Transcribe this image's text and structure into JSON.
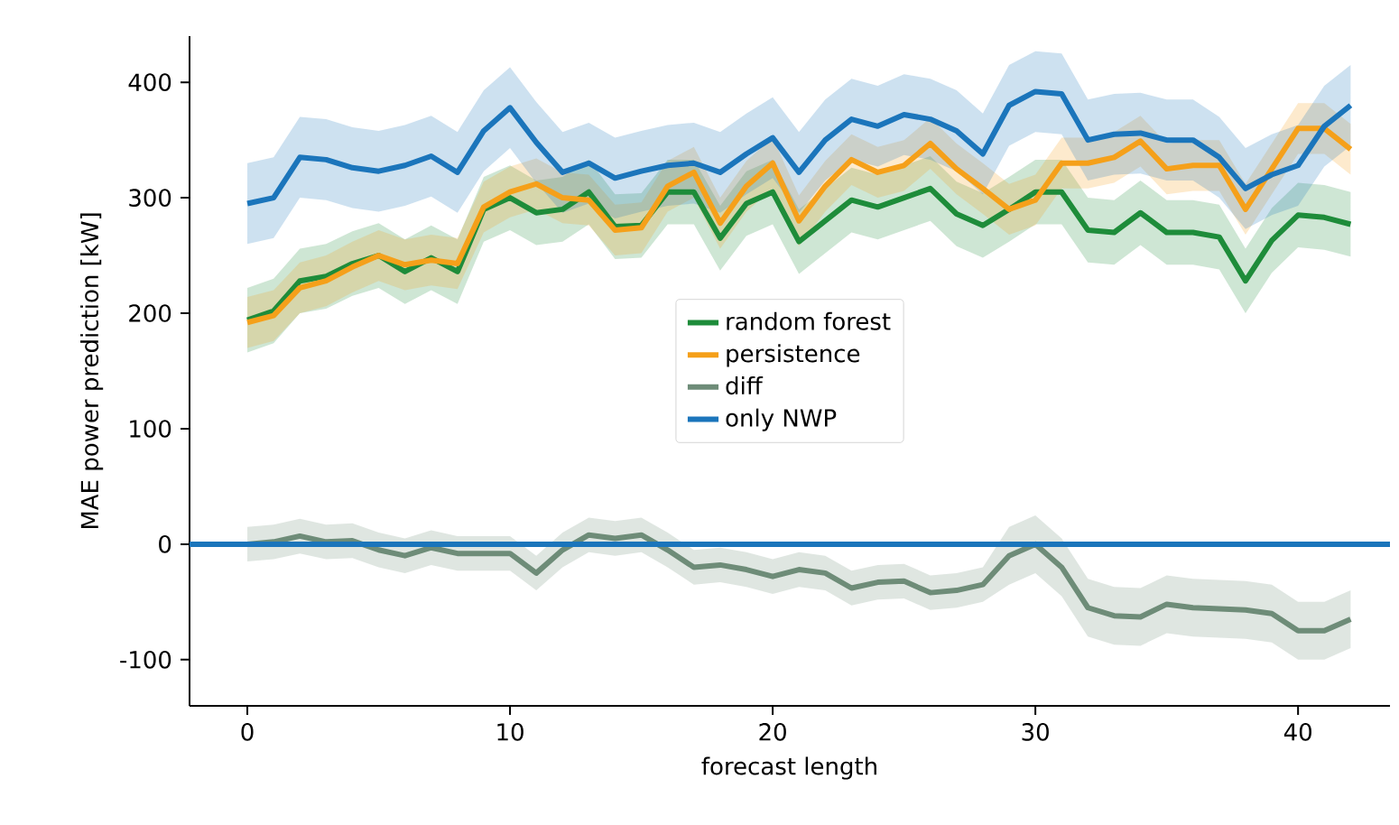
{
  "chart_data": {
    "type": "line",
    "xlabel": "forecast length",
    "ylabel": "MAE power prediction [kW]",
    "x": [
      0,
      1,
      2,
      3,
      4,
      5,
      6,
      7,
      8,
      9,
      10,
      11,
      12,
      13,
      14,
      15,
      16,
      17,
      18,
      19,
      20,
      21,
      22,
      23,
      24,
      25,
      26,
      27,
      28,
      29,
      30,
      31,
      32,
      33,
      34,
      35,
      36,
      37,
      38,
      39,
      40,
      41,
      42
    ],
    "xlim": [
      -2.2,
      43.5
    ],
    "ylim": [
      -140,
      440
    ],
    "xticks": [
      0,
      10,
      20,
      30,
      40
    ],
    "yticks": [
      -100,
      0,
      100,
      200,
      300,
      400
    ],
    "legend": "center",
    "grid": false,
    "series": [
      {
        "name": "random forest",
        "color": "#1e8c3a",
        "values": [
          194,
          202,
          228,
          232,
          243,
          250,
          236,
          248,
          236,
          290,
          300,
          287,
          290,
          305,
          275,
          276,
          305,
          305,
          265,
          295,
          305,
          262,
          280,
          298,
          292,
          300,
          308,
          286,
          276,
          290,
          305,
          305,
          272,
          270,
          287,
          270,
          270,
          266,
          228,
          263,
          285,
          283,
          277
        ],
        "lower": [
          166,
          174,
          200,
          204,
          215,
          222,
          208,
          220,
          208,
          262,
          272,
          259,
          262,
          277,
          247,
          248,
          277,
          277,
          237,
          267,
          277,
          234,
          252,
          270,
          264,
          272,
          280,
          258,
          248,
          262,
          277,
          277,
          244,
          242,
          259,
          242,
          242,
          238,
          200,
          235,
          257,
          255,
          249
        ],
        "upper": [
          222,
          230,
          256,
          260,
          271,
          278,
          264,
          276,
          264,
          318,
          328,
          315,
          318,
          333,
          303,
          304,
          333,
          333,
          293,
          323,
          333,
          290,
          308,
          326,
          320,
          328,
          336,
          314,
          304,
          318,
          333,
          333,
          300,
          298,
          315,
          298,
          298,
          294,
          256,
          291,
          313,
          311,
          305
        ]
      },
      {
        "name": "persistence",
        "color": "#f5a01a",
        "values": [
          192,
          198,
          222,
          228,
          240,
          250,
          242,
          246,
          243,
          292,
          305,
          312,
          300,
          298,
          272,
          274,
          310,
          322,
          278,
          310,
          330,
          280,
          310,
          333,
          322,
          328,
          347,
          325,
          308,
          290,
          298,
          330,
          330,
          335,
          349,
          325,
          328,
          328,
          290,
          325,
          360,
          360,
          342
        ],
        "lower": [
          170,
          176,
          200,
          206,
          218,
          228,
          220,
          224,
          221,
          270,
          283,
          290,
          278,
          276,
          250,
          252,
          288,
          300,
          256,
          288,
          308,
          258,
          288,
          311,
          300,
          306,
          325,
          303,
          286,
          268,
          276,
          308,
          308,
          313,
          327,
          303,
          306,
          306,
          268,
          303,
          338,
          338,
          320
        ],
        "upper": [
          214,
          220,
          244,
          250,
          262,
          272,
          264,
          268,
          265,
          314,
          327,
          334,
          322,
          320,
          294,
          296,
          332,
          344,
          300,
          332,
          352,
          302,
          332,
          355,
          344,
          350,
          369,
          347,
          330,
          312,
          320,
          352,
          352,
          357,
          371,
          347,
          350,
          350,
          312,
          347,
          382,
          382,
          364
        ]
      },
      {
        "name": "diff",
        "color": "#6e8c78",
        "values": [
          0,
          2,
          7,
          2,
          3,
          -5,
          -10,
          -3,
          -8,
          -8,
          -8,
          -25,
          -5,
          8,
          5,
          8,
          -5,
          -20,
          -18,
          -22,
          -28,
          -22,
          -25,
          -38,
          -33,
          -32,
          -42,
          -40,
          -35,
          -10,
          0,
          -20,
          -55,
          -62,
          -63,
          -52,
          -55,
          -56,
          -57,
          -60,
          -75,
          -75,
          -65
        ],
        "lower": [
          -15,
          -13,
          -8,
          -13,
          -12,
          -20,
          -25,
          -18,
          -23,
          -23,
          -23,
          -40,
          -20,
          -7,
          -10,
          -7,
          -20,
          -35,
          -33,
          -37,
          -43,
          -37,
          -40,
          -53,
          -48,
          -47,
          -57,
          -55,
          -50,
          -35,
          -25,
          -45,
          -80,
          -87,
          -88,
          -77,
          -80,
          -81,
          -82,
          -85,
          -100,
          -100,
          -90
        ],
        "upper": [
          15,
          17,
          22,
          17,
          18,
          10,
          5,
          12,
          7,
          7,
          7,
          -10,
          10,
          23,
          20,
          23,
          10,
          -5,
          -3,
          -7,
          -13,
          -7,
          -10,
          -23,
          -18,
          -17,
          -27,
          -25,
          -20,
          15,
          25,
          5,
          -30,
          -37,
          -38,
          -27,
          -30,
          -31,
          -32,
          -35,
          -50,
          -50,
          -40
        ]
      },
      {
        "name": "only NWP",
        "color": "#1b75bb",
        "values": [
          295,
          300,
          335,
          333,
          326,
          323,
          328,
          336,
          322,
          358,
          378,
          348,
          322,
          330,
          317,
          323,
          328,
          330,
          322,
          338,
          352,
          322,
          350,
          368,
          362,
          372,
          368,
          358,
          338,
          380,
          392,
          390,
          350,
          355,
          356,
          350,
          350,
          335,
          308,
          320,
          328,
          362,
          380
        ],
        "lower": [
          260,
          265,
          300,
          298,
          291,
          288,
          293,
          301,
          287,
          323,
          343,
          313,
          287,
          295,
          282,
          288,
          293,
          295,
          287,
          303,
          317,
          287,
          315,
          333,
          327,
          337,
          333,
          323,
          303,
          345,
          357,
          355,
          315,
          320,
          321,
          315,
          315,
          300,
          273,
          285,
          293,
          327,
          345
        ],
        "upper": [
          330,
          335,
          370,
          368,
          361,
          358,
          363,
          371,
          357,
          393,
          413,
          383,
          357,
          365,
          352,
          358,
          363,
          365,
          357,
          373,
          387,
          357,
          385,
          403,
          397,
          407,
          403,
          393,
          373,
          415,
          427,
          425,
          385,
          390,
          391,
          385,
          385,
          370,
          343,
          355,
          363,
          397,
          415
        ]
      }
    ],
    "ref_lines": [
      {
        "axis": "y",
        "value": 0,
        "color": "#1b75bb"
      }
    ]
  }
}
